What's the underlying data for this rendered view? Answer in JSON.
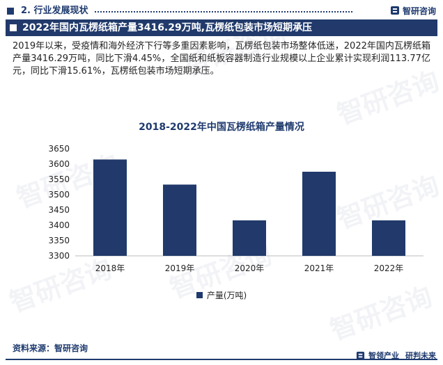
{
  "section": {
    "title": "2. 行业发展现状"
  },
  "brand": {
    "name": "智研咨询",
    "tagline_1": "智领产业",
    "tagline_2": "研判未来"
  },
  "headline": "2022年国内瓦楞纸箱产量3416.29万吨,瓦楞纸包装市场短期承压",
  "paragraph": "2019年以来，受疫情和海外经济下行等多重因素影响，瓦楞纸包装市场整体低迷，2022年国内瓦楞纸箱产量3416.29万吨，同比下滑4.45%，全国纸和纸板容器制造行业规模以上企业累计实现利润113.77亿元，同比下滑15.61%，瓦楞纸包装市场短期承压。",
  "source": "资料来源：智研咨询",
  "watermark_text": "智研咨询",
  "colors": {
    "primary": "#1e3a6e",
    "bar": "#213a6b"
  },
  "chart_data": {
    "type": "bar",
    "title": "2018-2022年中国瓦楞纸箱产量情况",
    "categories": [
      "2018年",
      "2019年",
      "2020年",
      "2021年",
      "2022年"
    ],
    "series": [
      {
        "name": "产量(万吨)",
        "values": [
          3615,
          3533,
          3416,
          3575,
          3416
        ]
      }
    ],
    "ylim": [
      3300,
      3650
    ],
    "yticks": [
      3300,
      3350,
      3400,
      3450,
      3500,
      3550,
      3600,
      3650
    ],
    "grid": false,
    "legend": "bottom"
  }
}
